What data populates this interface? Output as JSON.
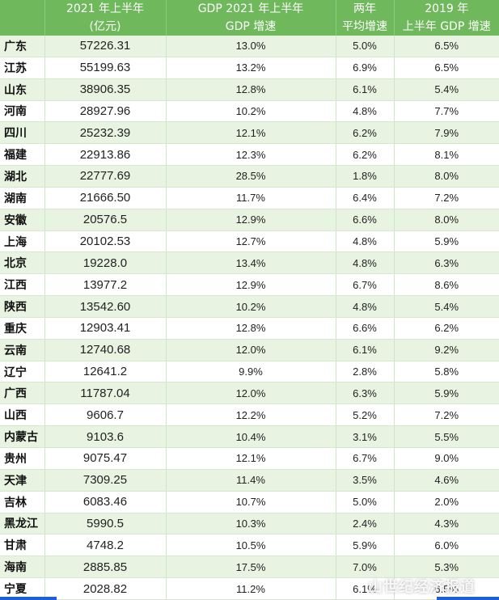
{
  "header": {
    "row1": [
      "",
      "2021 年上半年",
      "GDP    2021 年上半年",
      "两年",
      "2019 年"
    ],
    "row2": [
      "",
      "(亿元)",
      "GDP 增速",
      "平均增速",
      "上半年 GDP 增速"
    ]
  },
  "rows": [
    {
      "name": "广东",
      "gdp": "57226.31",
      "growth": "13.0%",
      "avg": "5.0%",
      "g2019": "6.5%"
    },
    {
      "name": "江苏",
      "gdp": "55199.63",
      "growth": "13.2%",
      "avg": "6.9%",
      "g2019": "6.5%"
    },
    {
      "name": "山东",
      "gdp": "38906.35",
      "growth": "12.8%",
      "avg": "6.1%",
      "g2019": "5.4%"
    },
    {
      "name": "河南",
      "gdp": "28927.96",
      "growth": "10.2%",
      "avg": "4.8%",
      "g2019": "7.7%"
    },
    {
      "name": "四川",
      "gdp": "25232.39",
      "growth": "12.1%",
      "avg": "6.2%",
      "g2019": "7.9%"
    },
    {
      "name": "福建",
      "gdp": "22913.86",
      "growth": "12.3%",
      "avg": "6.2%",
      "g2019": "8.1%"
    },
    {
      "name": "湖北",
      "gdp": "22777.69",
      "growth": "28.5%",
      "avg": "1.8%",
      "g2019": "8.0%"
    },
    {
      "name": "湖南",
      "gdp": "21666.50",
      "growth": "11.7%",
      "avg": "6.4%",
      "g2019": "7.2%"
    },
    {
      "name": "安徽",
      "gdp": "20576.5",
      "growth": "12.9%",
      "avg": "6.6%",
      "g2019": "8.0%"
    },
    {
      "name": "上海",
      "gdp": "20102.53",
      "growth": "12.7%",
      "avg": "4.8%",
      "g2019": "5.9%"
    },
    {
      "name": "北京",
      "gdp": "19228.0",
      "growth": "13.4%",
      "avg": "4.8%",
      "g2019": "6.3%"
    },
    {
      "name": "江西",
      "gdp": "13977.2",
      "growth": "12.9%",
      "avg": "6.7%",
      "g2019": "8.6%"
    },
    {
      "name": "陕西",
      "gdp": "13542.60",
      "growth": "10.2%",
      "avg": "4.8%",
      "g2019": "5.4%"
    },
    {
      "name": "重庆",
      "gdp": "12903.41",
      "growth": "12.8%",
      "avg": "6.6%",
      "g2019": "6.2%"
    },
    {
      "name": "云南",
      "gdp": "12740.68",
      "growth": "12.0%",
      "avg": "6.1%",
      "g2019": "9.2%"
    },
    {
      "name": "辽宁",
      "gdp": "12641.2",
      "growth": "9.9%",
      "avg": "2.8%",
      "g2019": "5.8%"
    },
    {
      "name": "广西",
      "gdp": "11787.04",
      "growth": "12.0%",
      "avg": "6.3%",
      "g2019": "5.9%"
    },
    {
      "name": "山西",
      "gdp": "9606.7",
      "growth": "12.2%",
      "avg": "5.2%",
      "g2019": "7.2%"
    },
    {
      "name": "内蒙古",
      "gdp": "9103.6",
      "growth": "10.4%",
      "avg": "3.1%",
      "g2019": "5.5%"
    },
    {
      "name": "贵州",
      "gdp": "9075.47",
      "growth": "12.1%",
      "avg": "6.7%",
      "g2019": "9.0%"
    },
    {
      "name": "天津",
      "gdp": "7309.25",
      "growth": "11.4%",
      "avg": "3.5%",
      "g2019": "4.6%"
    },
    {
      "name": "吉林",
      "gdp": "6083.46",
      "growth": "10.7%",
      "avg": "5.0%",
      "g2019": "2.0%"
    },
    {
      "name": "黑龙江",
      "gdp": "5990.5",
      "growth": "10.3%",
      "avg": "2.4%",
      "g2019": "4.3%"
    },
    {
      "name": "甘肃",
      "gdp": "4748.2",
      "growth": "10.5%",
      "avg": "5.9%",
      "g2019": "6.0%"
    },
    {
      "name": "海南",
      "gdp": "2885.85",
      "growth": "17.5%",
      "avg": "7.0%",
      "g2019": "5.3%"
    },
    {
      "name": "宁夏",
      "gdp": "2028.82",
      "growth": "11.2%",
      "avg": "6.1%",
      "g2019": "6.5%"
    }
  ],
  "watermark": "山世纪经济报道",
  "colors": {
    "header_bg": "#6fb95c",
    "header_text": "#ffffff",
    "row_stripe": "#e8f3e1",
    "row_plain": "#ffffff",
    "bottom_bar": "#1e5fd1"
  }
}
